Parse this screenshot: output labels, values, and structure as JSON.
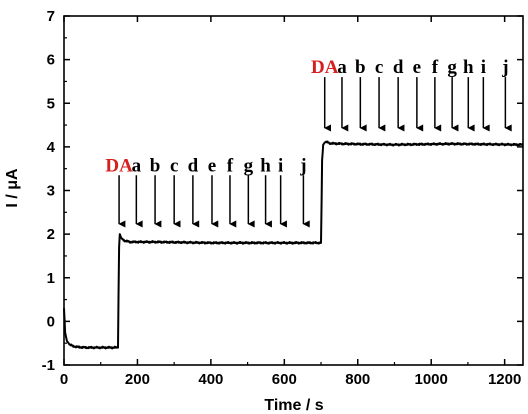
{
  "chart_data": {
    "type": "line",
    "title": "",
    "xlabel": "Time / s",
    "ylabel": "I / μA",
    "xlim": [
      0,
      1250
    ],
    "ylim": [
      -1,
      7
    ],
    "xticks": [
      0,
      200,
      400,
      600,
      800,
      1000,
      1200
    ],
    "yticks": [
      -1,
      0,
      1,
      2,
      3,
      4,
      5,
      6,
      7
    ],
    "grid": false,
    "legend": "none",
    "line_color": "#000000",
    "series": [
      {
        "x": [
          0,
          3,
          8,
          15,
          25,
          40,
          60,
          100,
          147,
          150,
          152,
          156,
          165,
          180,
          250,
          400,
          550,
          700,
          703,
          706,
          712,
          725,
          760,
          900,
          1050,
          1250
        ],
        "y": [
          0.3,
          -0.25,
          -0.45,
          -0.53,
          -0.57,
          -0.59,
          -0.6,
          -0.6,
          -0.6,
          1.7,
          2.0,
          1.9,
          1.85,
          1.82,
          1.82,
          1.8,
          1.8,
          1.8,
          3.7,
          4.05,
          4.12,
          4.08,
          4.07,
          4.05,
          4.07,
          4.05
        ]
      }
    ],
    "annotations": [
      {
        "arrow_y": [
          3.35,
          2.05
        ],
        "label_y": 3.6,
        "items": [
          {
            "label": "DA",
            "x": 150,
            "color": "#d62020"
          },
          {
            "label": "a",
            "x": 197
          },
          {
            "label": "b",
            "x": 248
          },
          {
            "label": "c",
            "x": 300
          },
          {
            "label": "d",
            "x": 351
          },
          {
            "label": "e",
            "x": 403
          },
          {
            "label": "f",
            "x": 452
          },
          {
            "label": "g",
            "x": 502
          },
          {
            "label": "h",
            "x": 549
          },
          {
            "label": "i",
            "x": 590
          },
          {
            "label": "j",
            "x": 652
          }
        ]
      },
      {
        "arrow_y": [
          5.6,
          4.25
        ],
        "label_y": 5.85,
        "items": [
          {
            "label": "DA",
            "x": 710,
            "color": "#d62020"
          },
          {
            "label": "a",
            "x": 757
          },
          {
            "label": "b",
            "x": 807
          },
          {
            "label": "c",
            "x": 858
          },
          {
            "label": "d",
            "x": 910
          },
          {
            "label": "e",
            "x": 961
          },
          {
            "label": "f",
            "x": 1010
          },
          {
            "label": "g",
            "x": 1057
          },
          {
            "label": "h",
            "x": 1101
          },
          {
            "label": "i",
            "x": 1142
          },
          {
            "label": "j",
            "x": 1202
          }
        ]
      }
    ]
  }
}
